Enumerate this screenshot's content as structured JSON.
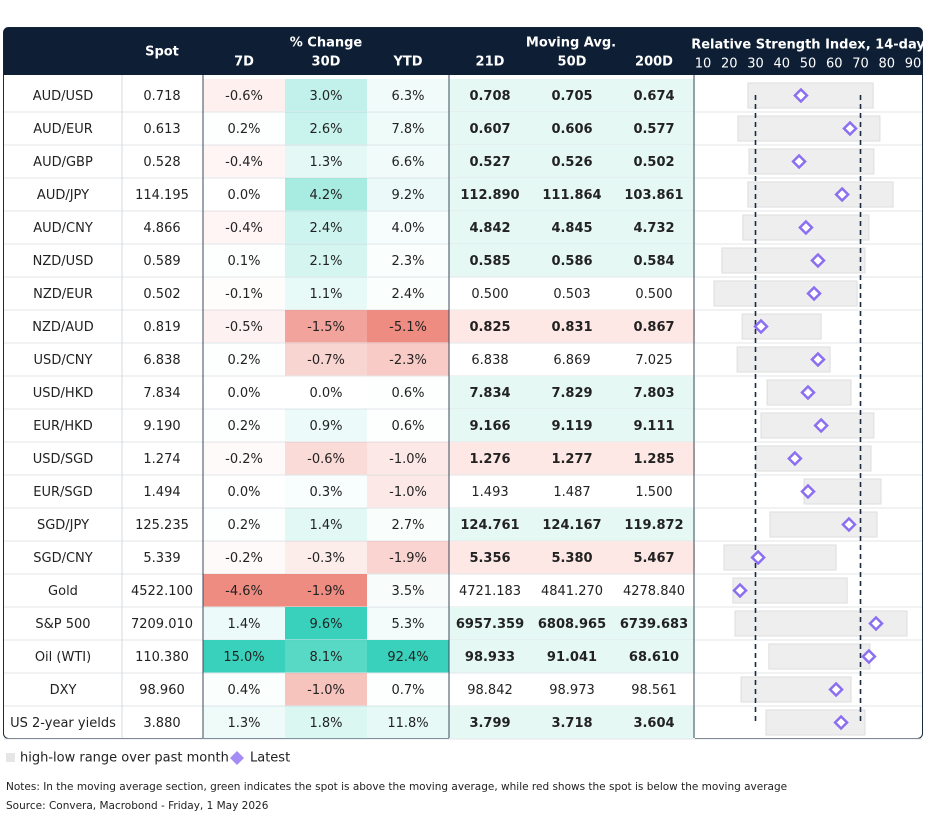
{
  "header": {
    "spot": "Spot",
    "change_group": "% Change",
    "change_cols": [
      "7D",
      "30D",
      "YTD"
    ],
    "ma_group": "Moving Avg.",
    "ma_cols": [
      "21D",
      "50D",
      "200D"
    ],
    "rsi_title": "Relative Strength Index, 14-day"
  },
  "rsi_axis": {
    "xlim": [
      10,
      90
    ],
    "xticks": [
      10,
      20,
      30,
      40,
      50,
      60,
      70,
      80,
      90
    ],
    "reference_lines": [
      30,
      70
    ]
  },
  "rows": [
    {
      "label": "AUD/USD",
      "spot": "0.718",
      "change": [
        "-0.6%",
        "3.0%",
        "6.3%"
      ],
      "ma": [
        "0.708",
        "0.705",
        "0.674"
      ],
      "rsi": {
        "low": 27.1,
        "high": 74.8,
        "latest": 47.3
      }
    },
    {
      "label": "AUD/EUR",
      "spot": "0.613",
      "change": [
        "0.2%",
        "2.6%",
        "7.8%"
      ],
      "ma": [
        "0.607",
        "0.606",
        "0.577"
      ],
      "rsi": {
        "low": 23.3,
        "high": 77.4,
        "latest": 66.0
      }
    },
    {
      "label": "AUD/GBP",
      "spot": "0.528",
      "change": [
        "-0.4%",
        "1.3%",
        "6.6%"
      ],
      "ma": [
        "0.527",
        "0.526",
        "0.502"
      ],
      "rsi": {
        "low": 27.5,
        "high": 75.1,
        "latest": 46.6
      }
    },
    {
      "label": "AUD/JPY",
      "spot": "114.195",
      "change": [
        "0.0%",
        "4.2%",
        "9.2%"
      ],
      "ma": [
        "112.890",
        "111.864",
        "103.861"
      ],
      "rsi": {
        "low": 27.1,
        "high": 82.4,
        "latest": 63.0
      }
    },
    {
      "label": "AUD/CNY",
      "spot": "4.866",
      "change": [
        "-0.4%",
        "2.4%",
        "4.0%"
      ],
      "ma": [
        "4.842",
        "4.845",
        "4.732"
      ],
      "rsi": {
        "low": 25.2,
        "high": 73.2,
        "latest": 49.2
      }
    },
    {
      "label": "NZD/USD",
      "spot": "0.589",
      "change": [
        "0.1%",
        "2.1%",
        "2.3%"
      ],
      "ma": [
        "0.585",
        "0.586",
        "0.584"
      ],
      "rsi": {
        "low": 17.2,
        "high": 71.7,
        "latest": 53.8
      }
    },
    {
      "label": "NZD/EUR",
      "spot": "0.502",
      "change": [
        "-0.1%",
        "1.1%",
        "2.4%"
      ],
      "ma": [
        "0.500",
        "0.503",
        "0.500"
      ],
      "rsi": {
        "low": 14.2,
        "high": 68.7,
        "latest": 52.3
      }
    },
    {
      "label": "NZD/AUD",
      "spot": "0.819",
      "change": [
        "-0.5%",
        "-1.5%",
        "-5.1%"
      ],
      "ma": [
        "0.825",
        "0.831",
        "0.867"
      ],
      "rsi": {
        "low": 24.9,
        "high": 55.0,
        "latest": 32.1
      }
    },
    {
      "label": "USD/CNY",
      "spot": "6.838",
      "change": [
        "0.2%",
        "-0.7%",
        "-2.3%"
      ],
      "ma": [
        "6.838",
        "6.869",
        "7.025"
      ],
      "rsi": {
        "low": 23.0,
        "high": 58.4,
        "latest": 53.8
      }
    },
    {
      "label": "USD/HKD",
      "spot": "7.834",
      "change": [
        "0.0%",
        "0.0%",
        "0.6%"
      ],
      "ma": [
        "7.834",
        "7.829",
        "7.803"
      ],
      "rsi": {
        "low": 34.4,
        "high": 66.4,
        "latest": 50.0
      }
    },
    {
      "label": "EUR/HKD",
      "spot": "9.190",
      "change": [
        "0.2%",
        "0.9%",
        "0.6%"
      ],
      "ma": [
        "9.166",
        "9.119",
        "9.111"
      ],
      "rsi": {
        "low": 32.1,
        "high": 75.1,
        "latest": 55.0
      }
    },
    {
      "label": "USD/SGD",
      "spot": "1.274",
      "change": [
        "-0.2%",
        "-0.6%",
        "-1.0%"
      ],
      "ma": [
        "1.276",
        "1.277",
        "1.285"
      ],
      "rsi": {
        "low": 30.2,
        "high": 74.0,
        "latest": 45.0
      }
    },
    {
      "label": "EUR/SGD",
      "spot": "1.494",
      "change": [
        "0.0%",
        "0.3%",
        "-1.0%"
      ],
      "ma": [
        "1.493",
        "1.487",
        "1.500"
      ],
      "rsi": {
        "low": 48.5,
        "high": 77.8,
        "latest": 50.0
      }
    },
    {
      "label": "SGD/JPY",
      "spot": "125.235",
      "change": [
        "0.2%",
        "1.4%",
        "2.7%"
      ],
      "ma": [
        "124.761",
        "124.167",
        "119.872"
      ],
      "rsi": {
        "low": 35.5,
        "high": 76.3,
        "latest": 65.6
      }
    },
    {
      "label": "SGD/CNY",
      "spot": "5.339",
      "change": [
        "-0.2%",
        "-0.3%",
        "-1.9%"
      ],
      "ma": [
        "5.356",
        "5.380",
        "5.467"
      ],
      "rsi": {
        "low": 18.0,
        "high": 60.7,
        "latest": 31.0
      }
    },
    {
      "label": "Gold",
      "spot": "4522.100",
      "change": [
        "-4.6%",
        "-1.9%",
        "3.5%"
      ],
      "ma": [
        "4721.183",
        "4841.270",
        "4278.840"
      ],
      "rsi": {
        "low": 21.4,
        "high": 64.9,
        "latest": 24.1
      }
    },
    {
      "label": "S&P 500",
      "spot": "7209.010",
      "change": [
        "1.4%",
        "9.6%",
        "5.3%"
      ],
      "ma": [
        "6957.359",
        "6808.965",
        "6739.683"
      ],
      "rsi": {
        "low": 22.2,
        "high": 87.7,
        "latest": 75.9
      }
    },
    {
      "label": "Oil (WTI)",
      "spot": "110.380",
      "change": [
        "15.0%",
        "8.1%",
        "92.4%"
      ],
      "ma": [
        "98.933",
        "91.041",
        "68.610"
      ],
      "rsi": {
        "low": 35.1,
        "high": 73.6,
        "latest": 73.2
      }
    },
    {
      "label": "DXY",
      "spot": "98.960",
      "change": [
        "0.4%",
        "-1.0%",
        "0.7%"
      ],
      "ma": [
        "98.842",
        "98.973",
        "98.561"
      ],
      "rsi": {
        "low": 24.5,
        "high": 66.4,
        "latest": 60.7
      }
    },
    {
      "label": "US 2-year yields",
      "spot": "3.880",
      "change": [
        "1.3%",
        "1.8%",
        "11.8%"
      ],
      "ma": [
        "3.799",
        "3.718",
        "3.604"
      ],
      "rsi": {
        "low": 34.0,
        "high": 71.7,
        "latest": 62.6
      }
    }
  ],
  "legend": {
    "range": "high-low range over past month",
    "latest": "Latest"
  },
  "notes": "Notes: In the moving average section, green indicates the spot is above the moving average, while red shows the spot is below the moving average",
  "source": "Source: Convera, Macrobond - Friday, 1 May 2026"
}
